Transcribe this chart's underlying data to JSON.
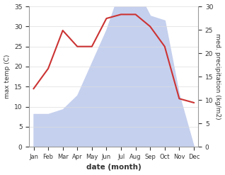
{
  "months": [
    "Jan",
    "Feb",
    "Mar",
    "Apr",
    "May",
    "Jun",
    "Jul",
    "Aug",
    "Sep",
    "Oct",
    "Nov",
    "Dec"
  ],
  "temperature": [
    14.5,
    19.5,
    29,
    25,
    25,
    32,
    33,
    33,
    30,
    25,
    12,
    11
  ],
  "precipitation": [
    7,
    7,
    8,
    11,
    18,
    25,
    34,
    34,
    28,
    27,
    11,
    0
  ],
  "temp_color": "#cc3333",
  "precip_color": "#c5d0ee",
  "temp_ylim": [
    0,
    35
  ],
  "precip_ylim": [
    0,
    30
  ],
  "temp_yticks": [
    0,
    5,
    10,
    15,
    20,
    25,
    30,
    35
  ],
  "precip_yticks": [
    0,
    5,
    10,
    15,
    20,
    25,
    30
  ],
  "xlabel": "date (month)",
  "ylabel_left": "max temp (C)",
  "ylabel_right": "med. precipitation (kg/m2)",
  "background_color": "#ffffff",
  "grid_color": "#dddddd"
}
